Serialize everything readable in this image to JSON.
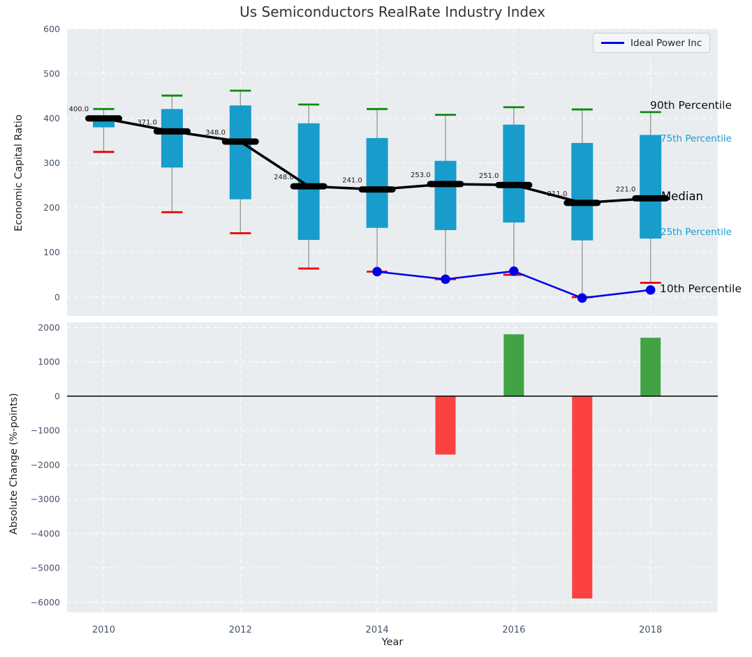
{
  "legend": {
    "label": "Ideal Power Inc",
    "line_color": "#0000e8"
  },
  "percentile_labels": {
    "p90": "90th Percentile",
    "p75": "75th Percentile",
    "median": "Median",
    "p25": "25th Percentile",
    "p10": "10th Percentile"
  },
  "colors": {
    "plot_background": "#e9edf0",
    "grid": "#ffffff",
    "box": "#189ccc",
    "whisker": "#8c8c8c",
    "cap_90th": "#0c8b0c",
    "cap_10th": "#ee0000",
    "median_line": "#000000",
    "company_line": "#0000e8",
    "bar_positive": "#41a344",
    "bar_negative": "#fb4141",
    "tick_label": "#43536b",
    "annotation": "#191919",
    "percentile_cyan": "#1a9cd0"
  },
  "chart_data": [
    {
      "type": "box",
      "title": "Us Semiconductors RealRate Industry Index",
      "ylabel": "Economic Capital Ratio",
      "ylim": [
        -50,
        620
      ],
      "yticks": [
        600,
        500,
        400,
        300,
        200,
        100,
        0
      ],
      "grid": true,
      "legend_position": "upper right",
      "categories": [
        2010,
        2011,
        2012,
        2013,
        2014,
        2015,
        2016,
        2017,
        2018
      ],
      "boxes": [
        {
          "year": 2010,
          "p90": 421,
          "p75": 400,
          "median": 400,
          "p25": 380,
          "p10": 325,
          "label": "400.0"
        },
        {
          "year": 2011,
          "p90": 451,
          "p75": 421,
          "median": 371,
          "p25": 290,
          "p10": 190,
          "label": "371.0"
        },
        {
          "year": 2012,
          "p90": 462,
          "p75": 429,
          "median": 348,
          "p25": 219,
          "p10": 143,
          "label": "348.0"
        },
        {
          "year": 2013,
          "p90": 431,
          "p75": 389,
          "median": 248,
          "p25": 128,
          "p10": 64,
          "label": "248.0"
        },
        {
          "year": 2014,
          "p90": 421,
          "p75": 356,
          "median": 241,
          "p25": 155,
          "p10": 57,
          "label": "241.0"
        },
        {
          "year": 2015,
          "p90": 408,
          "p75": 305,
          "median": 253,
          "p25": 150,
          "p10": 40,
          "label": "253.0"
        },
        {
          "year": 2016,
          "p90": 425,
          "p75": 386,
          "median": 251,
          "p25": 167,
          "p10": 50,
          "label": "251.0"
        },
        {
          "year": 2017,
          "p90": 420,
          "p75": 345,
          "median": 211,
          "p25": 127,
          "p10": 0,
          "label": "211.0"
        },
        {
          "year": 2018,
          "p90": 414,
          "p75": 363,
          "median": 221,
          "p25": 131,
          "p10": 32,
          "label": "221.0"
        }
      ],
      "series": [
        {
          "name": "Ideal Power Inc",
          "x": [
            2014,
            2015,
            2016,
            2017,
            2018
          ],
          "values": [
            57,
            40,
            58,
            -2,
            16
          ]
        }
      ]
    },
    {
      "type": "bar",
      "ylabel": "Absolute Change (%-points)",
      "xlabel": "Year",
      "ylim": [
        -6350,
        2250
      ],
      "yticks": [
        2000,
        1000,
        0,
        -1000,
        -2000,
        -3000,
        -4000,
        -5000,
        -6000
      ],
      "xticks": [
        2010,
        2012,
        2014,
        2016,
        2018
      ],
      "baseline": 0,
      "grid": true,
      "bars": [
        {
          "year": 2015,
          "value": -1700
        },
        {
          "year": 2016,
          "value": 1800
        },
        {
          "year": 2017,
          "value": -5890
        },
        {
          "year": 2018,
          "value": 1700
        }
      ]
    }
  ]
}
